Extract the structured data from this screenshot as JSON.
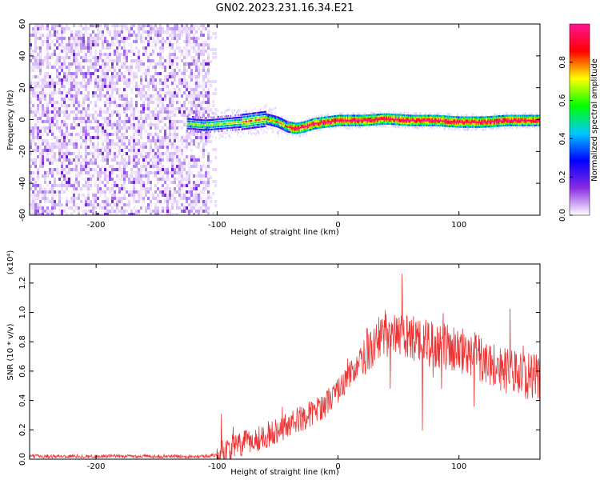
{
  "chart_data": [
    {
      "type": "heatmap",
      "title": "GN02.2023.231.16.34.E21",
      "xlabel": "Height of straight line (km)",
      "ylabel": "Frequency (Hz)",
      "xlim": [
        -255,
        167
      ],
      "ylim": [
        -60,
        60
      ],
      "xticks": [
        "-200",
        "-100",
        "0",
        "100"
      ],
      "yticks": [
        "-60",
        "-40",
        "-20",
        "0",
        "20",
        "40",
        "60"
      ],
      "noise_region_x": [
        -255,
        -108
      ],
      "ridge": {
        "x": [
          -125,
          -110,
          -95,
          -80,
          -70,
          -60,
          -50,
          -42,
          -35,
          -28,
          -20,
          -10,
          0,
          20,
          40,
          60,
          80,
          100,
          120,
          140,
          167
        ],
        "freq": [
          -2,
          -3,
          -2,
          -1,
          0,
          1,
          -1,
          -4,
          -5,
          -4,
          -2,
          -1,
          0,
          0,
          1,
          0,
          0,
          -1,
          -1,
          0,
          0
        ]
      },
      "colorbar": {
        "label": "Normalized spectral amplitude",
        "ticks": [
          "0.0",
          "0.2",
          "0.4",
          "0.6",
          "0.8"
        ],
        "range": [
          0,
          1
        ],
        "colors": [
          "#ffffff",
          "#8a2be2",
          "#0000ff",
          "#00c8ff",
          "#00ff00",
          "#ffff00",
          "#ff0000",
          "#ff1493"
        ]
      }
    },
    {
      "type": "line",
      "xlabel": "Height of straight line (km)",
      "ylabel": "SNR (10 * v/v)",
      "yscale_label": "(x10⁴)",
      "xlim": [
        -255,
        167
      ],
      "ylim": [
        0,
        1.33
      ],
      "xticks": [
        "-200",
        "-100",
        "0",
        "100"
      ],
      "yticks": [
        "0.0",
        "0.2",
        "0.4",
        "0.6",
        "0.8",
        "1.0",
        "1.2"
      ],
      "series": [
        {
          "color": "#ee3333",
          "x": [
            -255,
            -200,
            -150,
            -110,
            -100,
            -90,
            -80,
            -70,
            -60,
            -50,
            -40,
            -30,
            -20,
            -10,
            0,
            10,
            20,
            30,
            40,
            50,
            60,
            70,
            80,
            90,
            100,
            110,
            120,
            130,
            140,
            150,
            160,
            167
          ],
          "y": [
            0.02,
            0.02,
            0.02,
            0.02,
            0.03,
            0.07,
            0.1,
            0.13,
            0.16,
            0.2,
            0.24,
            0.28,
            0.32,
            0.38,
            0.47,
            0.58,
            0.7,
            0.79,
            0.84,
            0.84,
            0.82,
            0.8,
            0.78,
            0.76,
            0.74,
            0.72,
            0.68,
            0.64,
            0.6,
            0.58,
            0.56,
            0.55
          ]
        }
      ]
    }
  ]
}
